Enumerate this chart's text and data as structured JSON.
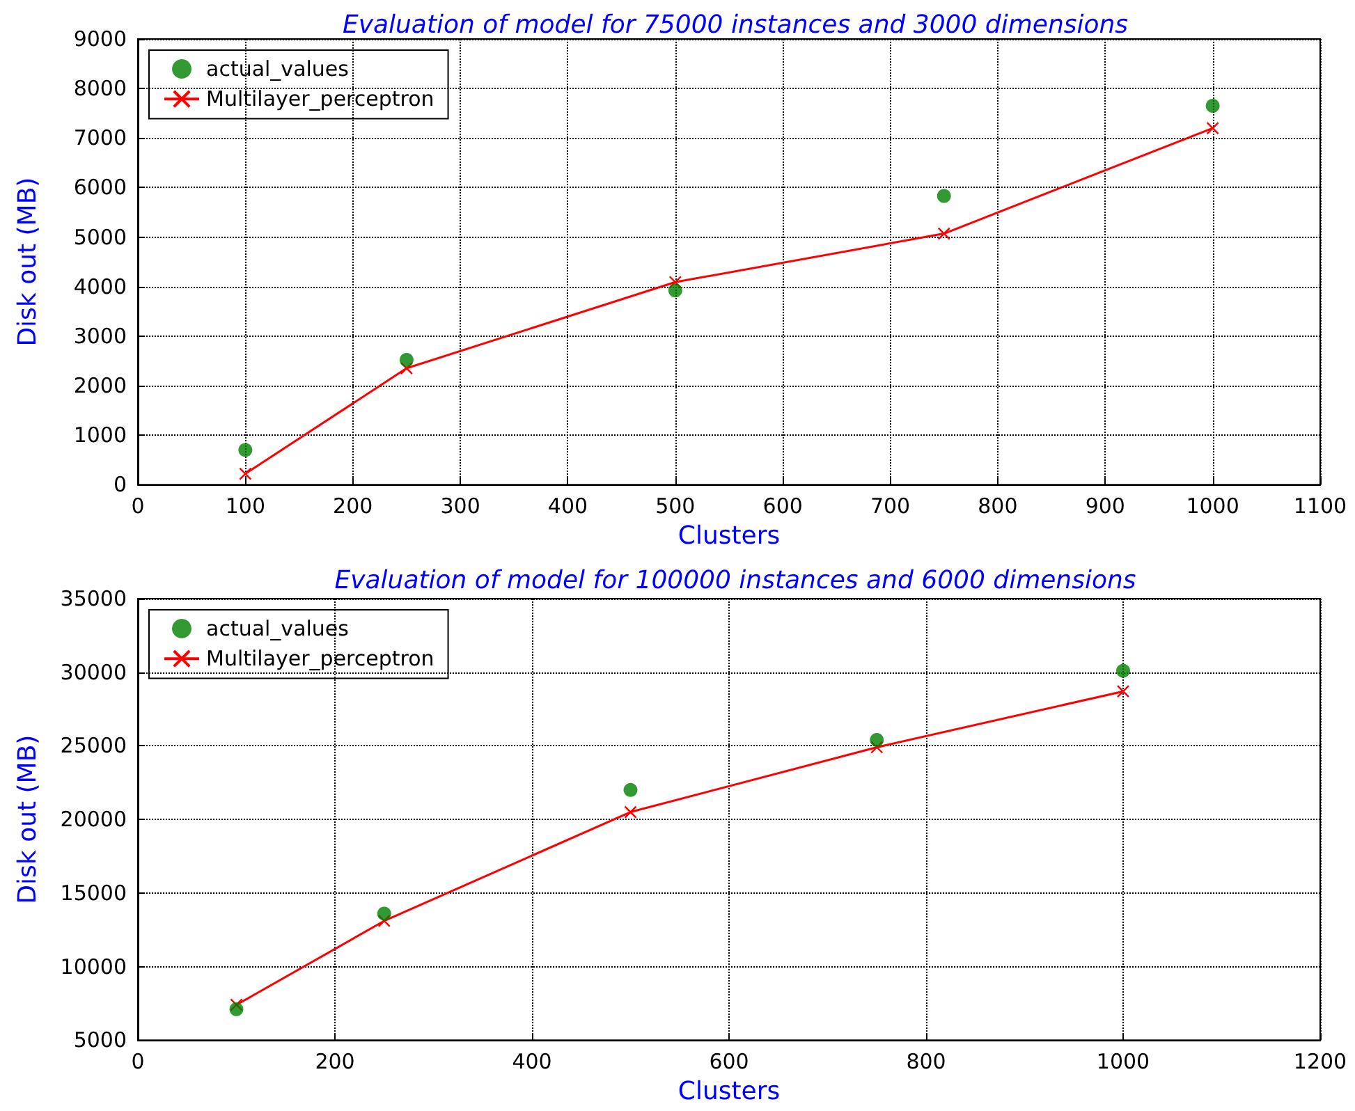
{
  "chart_data": [
    {
      "type": "line",
      "title": "Evaluation of model for 75000 instances and 3000 dimensions",
      "xlabel": "Clusters",
      "ylabel": "Disk out (MB)",
      "x": [
        100,
        250,
        500,
        750,
        1000
      ],
      "series": [
        {
          "name": "actual_values",
          "type": "scatter",
          "marker": "circle",
          "color": "#007f00",
          "values": [
            700,
            2520,
            3920,
            5830,
            7650
          ]
        },
        {
          "name": "Multilayer_perceptron",
          "marker": "cross",
          "color": "#ff0000",
          "values": [
            220,
            2350,
            4090,
            5070,
            7200
          ]
        }
      ],
      "xlim": [
        0,
        1100
      ],
      "xticks": [
        0,
        100,
        200,
        300,
        400,
        500,
        600,
        700,
        800,
        900,
        1000,
        1100
      ],
      "ylim": [
        0,
        9000
      ],
      "yticks": [
        0,
        1000,
        2000,
        3000,
        4000,
        5000,
        6000,
        7000,
        8000,
        9000
      ],
      "grid": true,
      "legend": "top left"
    },
    {
      "type": "line",
      "title": "Evaluation of model for 100000 instances and 6000 dimensions",
      "xlabel": "Clusters",
      "ylabel": "Disk out (MB)",
      "x": [
        100,
        250,
        500,
        750,
        1000
      ],
      "series": [
        {
          "name": "actual_values",
          "type": "scatter",
          "marker": "circle",
          "color": "#007f00",
          "values": [
            7100,
            13600,
            22000,
            25400,
            30100
          ]
        },
        {
          "name": "Multilayer_perceptron",
          "marker": "cross",
          "color": "#ff0000",
          "values": [
            7400,
            13100,
            20500,
            24900,
            28700
          ]
        }
      ],
      "xlim": [
        0,
        1200
      ],
      "xticks": [
        0,
        200,
        400,
        600,
        800,
        1000,
        1200
      ],
      "ylim": [
        5000,
        35000
      ],
      "yticks": [
        5000,
        10000,
        15000,
        20000,
        25000,
        30000,
        35000
      ],
      "grid": true,
      "legend": "top left"
    }
  ]
}
